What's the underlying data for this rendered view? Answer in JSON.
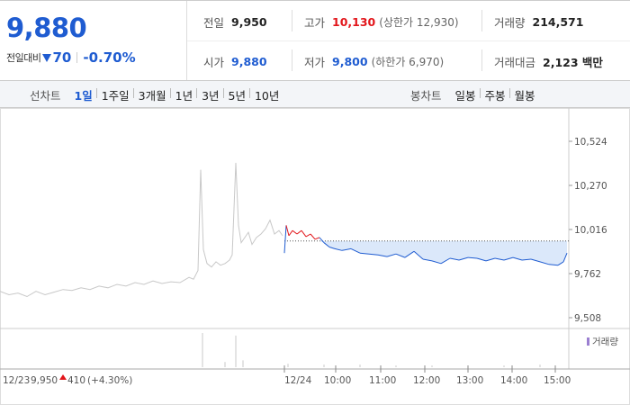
{
  "quote": {
    "price": "9,880",
    "change_label": "전일대비",
    "change_value": "70",
    "change_pct": "-0.70%"
  },
  "stats": {
    "prev_close_label": "전일",
    "prev_close": "9,950",
    "high_label": "고가",
    "high": "10,130",
    "upper_limit": "(상한가 12,930)",
    "volume_label": "거래량",
    "volume": "214,571",
    "open_label": "시가",
    "open": "9,880",
    "low_label": "저가",
    "low": "9,800",
    "lower_limit": "(하한가 6,970)",
    "amount_label": "거래대금",
    "amount": "2,123 백만"
  },
  "periods": {
    "line_title": "선차트",
    "line_tabs": [
      "1일",
      "1주일",
      "3개월",
      "1년",
      "3년",
      "5년",
      "10년"
    ],
    "line_active": "1일",
    "candle_title": "봉차트",
    "candle_tabs": [
      "일봉",
      "주봉",
      "월봉"
    ]
  },
  "colors": {
    "up": "#e2161b",
    "down": "#1f5cd1",
    "prev_day_line": "#c8c8c8",
    "band_fill": "#dbe8fa"
  },
  "chart_data": {
    "type": "line",
    "ylim": [
      9508,
      10524
    ],
    "y_ticks": [
      "10,524",
      "10,270",
      "10,016",
      "9,762",
      "9,508"
    ],
    "reference_price": 9950,
    "volume_legend": "거래량",
    "prev_day": {
      "date_label": "12/23",
      "close": "9,950",
      "change": "410",
      "change_pct": "(+4.30%)",
      "x": [
        0,
        10,
        20,
        30,
        40,
        50,
        60,
        70,
        80,
        90,
        100,
        110,
        120,
        130,
        140,
        150,
        160,
        170,
        180,
        190,
        200,
        210,
        215,
        220,
        223,
        226,
        230,
        235,
        240,
        245,
        250,
        255,
        258,
        262,
        265,
        268,
        272,
        276,
        280,
        285,
        290,
        295,
        300,
        305,
        310,
        314
      ],
      "values": [
        9660,
        9640,
        9650,
        9630,
        9660,
        9640,
        9655,
        9670,
        9665,
        9680,
        9670,
        9690,
        9680,
        9700,
        9690,
        9710,
        9700,
        9720,
        9705,
        9715,
        9710,
        9740,
        9730,
        9780,
        10360,
        9900,
        9820,
        9800,
        9830,
        9810,
        9820,
        9840,
        9870,
        10400,
        10040,
        9940,
        9970,
        10000,
        9930,
        9970,
        9990,
        10020,
        10070,
        9990,
        10010,
        9980
      ]
    },
    "today": {
      "date_label": "12/24",
      "time_labels": [
        "10:00",
        "11:00",
        "12:00",
        "13:00",
        "14:00",
        "15:00"
      ],
      "x": [
        316,
        318,
        321,
        325,
        330,
        335,
        340,
        345,
        350,
        355,
        360,
        366,
        372,
        380,
        390,
        400,
        410,
        420,
        430,
        440,
        450,
        460,
        470,
        480,
        490,
        500,
        510,
        520,
        530,
        540,
        550,
        560,
        570,
        580,
        590,
        600,
        610,
        620,
        626,
        630
      ],
      "values": [
        9880,
        10040,
        9980,
        10010,
        9990,
        10010,
        9975,
        9990,
        9960,
        9970,
        9940,
        9915,
        9905,
        9895,
        9905,
        9880,
        9875,
        9870,
        9860,
        9875,
        9855,
        9890,
        9845,
        9835,
        9820,
        9850,
        9840,
        9855,
        9850,
        9835,
        9850,
        9840,
        9855,
        9840,
        9845,
        9830,
        9815,
        9810,
        9830,
        9880
      ]
    },
    "volume": {
      "x": [
        225,
        250,
        262,
        270,
        320,
        360,
        400,
        440,
        480,
        520,
        560,
        600
      ],
      "values": [
        40,
        6,
        37,
        8,
        4,
        3,
        3,
        2,
        2,
        2,
        2,
        3
      ]
    }
  }
}
